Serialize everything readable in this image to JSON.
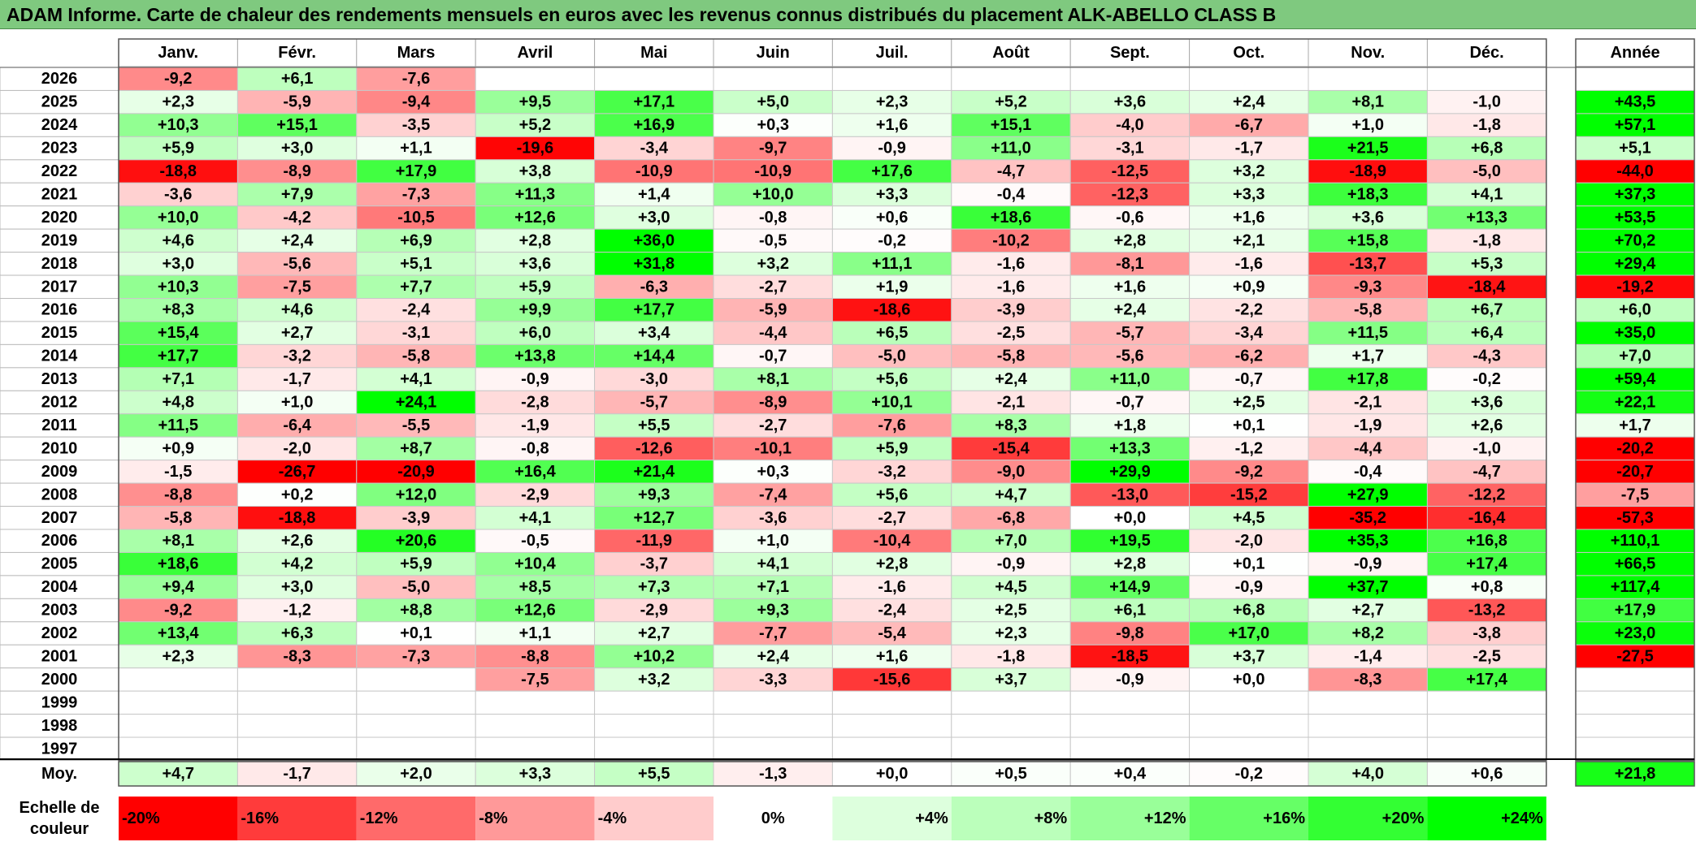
{
  "title": "ADAM Informe. Carte de chaleur des rendements mensuels en euros avec les revenus connus distribués du placement ALK-ABELLO CLASS B",
  "chart_data": {
    "type": "heatmap",
    "months": [
      "Janv.",
      "Févr.",
      "Mars",
      "Avril",
      "Mai",
      "Juin",
      "Juil.",
      "Août",
      "Sept.",
      "Oct.",
      "Nov.",
      "Déc."
    ],
    "year_header": "Année",
    "rows": [
      {
        "year": "2026",
        "values": [
          "-9,2",
          "+6,1",
          "-7,6",
          "",
          "",
          "",
          "",
          "",
          "",
          "",
          "",
          ""
        ],
        "annual": ""
      },
      {
        "year": "2025",
        "values": [
          "+2,3",
          "-5,9",
          "-9,4",
          "+9,5",
          "+17,1",
          "+5,0",
          "+2,3",
          "+5,2",
          "+3,6",
          "+2,4",
          "+8,1",
          "-1,0"
        ],
        "annual": "+43,5"
      },
      {
        "year": "2024",
        "values": [
          "+10,3",
          "+15,1",
          "-3,5",
          "+5,2",
          "+16,9",
          "+0,3",
          "+1,6",
          "+15,1",
          "-4,0",
          "-6,7",
          "+1,0",
          "-1,8"
        ],
        "annual": "+57,1"
      },
      {
        "year": "2023",
        "values": [
          "+5,9",
          "+3,0",
          "+1,1",
          "-19,6",
          "-3,4",
          "-9,7",
          "-0,9",
          "+11,0",
          "-3,1",
          "-1,7",
          "+21,5",
          "+6,8"
        ],
        "annual": "+5,1"
      },
      {
        "year": "2022",
        "values": [
          "-18,8",
          "-8,9",
          "+17,9",
          "+3,8",
          "-10,9",
          "-10,9",
          "+17,6",
          "-4,7",
          "-12,5",
          "+3,2",
          "-18,9",
          "-5,0"
        ],
        "annual": "-44,0"
      },
      {
        "year": "2021",
        "values": [
          "-3,6",
          "+7,9",
          "-7,3",
          "+11,3",
          "+1,4",
          "+10,0",
          "+3,3",
          "-0,4",
          "-12,3",
          "+3,3",
          "+18,3",
          "+4,1"
        ],
        "annual": "+37,3"
      },
      {
        "year": "2020",
        "values": [
          "+10,0",
          "-4,2",
          "-10,5",
          "+12,6",
          "+3,0",
          "-0,8",
          "+0,6",
          "+18,6",
          "-0,6",
          "+1,6",
          "+3,6",
          "+13,3"
        ],
        "annual": "+53,5"
      },
      {
        "year": "2019",
        "values": [
          "+4,6",
          "+2,4",
          "+6,9",
          "+2,8",
          "+36,0",
          "-0,5",
          "-0,2",
          "-10,2",
          "+2,8",
          "+2,1",
          "+15,8",
          "-1,8"
        ],
        "annual": "+70,2"
      },
      {
        "year": "2018",
        "values": [
          "+3,0",
          "-5,6",
          "+5,1",
          "+3,6",
          "+31,8",
          "+3,2",
          "+11,1",
          "-1,6",
          "-8,1",
          "-1,6",
          "-13,7",
          "+5,3"
        ],
        "annual": "+29,4"
      },
      {
        "year": "2017",
        "values": [
          "+10,3",
          "-7,5",
          "+7,7",
          "+5,9",
          "-6,3",
          "-2,7",
          "+1,9",
          "-1,6",
          "+1,6",
          "+0,9",
          "-9,3",
          "-18,4"
        ],
        "annual": "-19,2"
      },
      {
        "year": "2016",
        "values": [
          "+8,3",
          "+4,6",
          "-2,4",
          "+9,9",
          "+17,7",
          "-5,9",
          "-18,6",
          "-3,9",
          "+2,4",
          "-2,2",
          "-5,8",
          "+6,7"
        ],
        "annual": "+6,0"
      },
      {
        "year": "2015",
        "values": [
          "+15,4",
          "+2,7",
          "-3,1",
          "+6,0",
          "+3,4",
          "-4,4",
          "+6,5",
          "-2,5",
          "-5,7",
          "-3,4",
          "+11,5",
          "+6,4"
        ],
        "annual": "+35,0"
      },
      {
        "year": "2014",
        "values": [
          "+17,7",
          "-3,2",
          "-5,8",
          "+13,8",
          "+14,4",
          "-0,7",
          "-5,0",
          "-5,8",
          "-5,6",
          "-6,2",
          "+1,7",
          "-4,3"
        ],
        "annual": "+7,0"
      },
      {
        "year": "2013",
        "values": [
          "+7,1",
          "-1,7",
          "+4,1",
          "-0,9",
          "-3,0",
          "+8,1",
          "+5,6",
          "+2,4",
          "+11,0",
          "-0,7",
          "+17,8",
          "-0,2"
        ],
        "annual": "+59,4"
      },
      {
        "year": "2012",
        "values": [
          "+4,8",
          "+1,0",
          "+24,1",
          "-2,8",
          "-5,7",
          "-8,9",
          "+10,1",
          "-2,1",
          "-0,7",
          "+2,5",
          "-2,1",
          "+3,6"
        ],
        "annual": "+22,1"
      },
      {
        "year": "2011",
        "values": [
          "+11,5",
          "-6,4",
          "-5,5",
          "-1,9",
          "+5,5",
          "-2,7",
          "-7,6",
          "+8,3",
          "+1,8",
          "+0,1",
          "-1,9",
          "+2,6"
        ],
        "annual": "+1,7"
      },
      {
        "year": "2010",
        "values": [
          "+0,9",
          "-2,0",
          "+8,7",
          "-0,8",
          "-12,6",
          "-10,1",
          "+5,9",
          "-15,4",
          "+13,3",
          "-1,2",
          "-4,4",
          "-1,0"
        ],
        "annual": "-20,2"
      },
      {
        "year": "2009",
        "values": [
          "-1,5",
          "-26,7",
          "-20,9",
          "+16,4",
          "+21,4",
          "+0,3",
          "-3,2",
          "-9,0",
          "+29,9",
          "-9,2",
          "-0,4",
          "-4,7"
        ],
        "annual": "-20,7"
      },
      {
        "year": "2008",
        "values": [
          "-8,8",
          "+0,2",
          "+12,0",
          "-2,9",
          "+9,3",
          "-7,4",
          "+5,6",
          "+4,7",
          "-13,0",
          "-15,2",
          "+27,9",
          "-12,2"
        ],
        "annual": "-7,5"
      },
      {
        "year": "2007",
        "values": [
          "-5,8",
          "-18,8",
          "-3,9",
          "+4,1",
          "+12,7",
          "-3,6",
          "-2,7",
          "-6,8",
          "+0,0",
          "+4,5",
          "-35,2",
          "-16,4"
        ],
        "annual": "-57,3"
      },
      {
        "year": "2006",
        "values": [
          "+8,1",
          "+2,6",
          "+20,6",
          "-0,5",
          "-11,9",
          "+1,0",
          "-10,4",
          "+7,0",
          "+19,5",
          "-2,0",
          "+35,3",
          "+16,8"
        ],
        "annual": "+110,1"
      },
      {
        "year": "2005",
        "values": [
          "+18,6",
          "+4,2",
          "+5,9",
          "+10,4",
          "-3,7",
          "+4,1",
          "+2,8",
          "-0,9",
          "+2,8",
          "+0,1",
          "-0,9",
          "+17,4"
        ],
        "annual": "+66,5"
      },
      {
        "year": "2004",
        "values": [
          "+9,4",
          "+3,0",
          "-5,0",
          "+8,5",
          "+7,3",
          "+7,1",
          "-1,6",
          "+4,5",
          "+14,9",
          "-0,9",
          "+37,7",
          "+0,8"
        ],
        "annual": "+117,4"
      },
      {
        "year": "2003",
        "values": [
          "-9,2",
          "-1,2",
          "+8,8",
          "+12,6",
          "-2,9",
          "+9,3",
          "-2,4",
          "+2,5",
          "+6,1",
          "+6,8",
          "+2,7",
          "-13,2"
        ],
        "annual": "+17,9"
      },
      {
        "year": "2002",
        "values": [
          "+13,4",
          "+6,3",
          "+0,1",
          "+1,1",
          "+2,7",
          "-7,7",
          "-5,4",
          "+2,3",
          "-9,8",
          "+17,0",
          "+8,2",
          "-3,8"
        ],
        "annual": "+23,0"
      },
      {
        "year": "2001",
        "values": [
          "+2,3",
          "-8,3",
          "-7,3",
          "-8,8",
          "+10,2",
          "+2,4",
          "+1,6",
          "-1,8",
          "-18,5",
          "+3,7",
          "-1,4",
          "-2,5"
        ],
        "annual": "-27,5"
      },
      {
        "year": "2000",
        "values": [
          "",
          "",
          "",
          "-7,5",
          "+3,2",
          "-3,3",
          "-15,6",
          "+3,7",
          "-0,9",
          "+0,0",
          "-8,3",
          "+17,4"
        ],
        "annual": ""
      },
      {
        "year": "1999",
        "values": [
          "",
          "",
          "",
          "",
          "",
          "",
          "",
          "",
          "",
          "",
          "",
          ""
        ],
        "annual": ""
      },
      {
        "year": "1998",
        "values": [
          "",
          "",
          "",
          "",
          "",
          "",
          "",
          "",
          "",
          "",
          "",
          ""
        ],
        "annual": ""
      },
      {
        "year": "1997",
        "values": [
          "",
          "",
          "",
          "",
          "",
          "",
          "",
          "",
          "",
          "",
          "",
          ""
        ],
        "annual": ""
      }
    ],
    "average": {
      "label": "Moy.",
      "values": [
        "+4,7",
        "-1,7",
        "+2,0",
        "+3,3",
        "+5,5",
        "-1,3",
        "+0,0",
        "+0,5",
        "+0,4",
        "-0,2",
        "+4,0",
        "+0,6"
      ],
      "annual": "+21,8"
    },
    "scale": {
      "label_line1": "Echelle de",
      "label_line2": "couleur",
      "stops": [
        "-20%",
        "-16%",
        "-12%",
        "-8%",
        "-4%",
        "0%",
        "+4%",
        "+8%",
        "+12%",
        "+16%",
        "+20%",
        "+24%"
      ],
      "colors": [
        "#ff0000",
        "#ff3b3b",
        "#ff6a6a",
        "#ff9999",
        "#ffcccc",
        "#ffffff",
        "#ddffdd",
        "#bbffbb",
        "#99ff99",
        "#66ff66",
        "#33ff33",
        "#00ff00"
      ]
    }
  }
}
